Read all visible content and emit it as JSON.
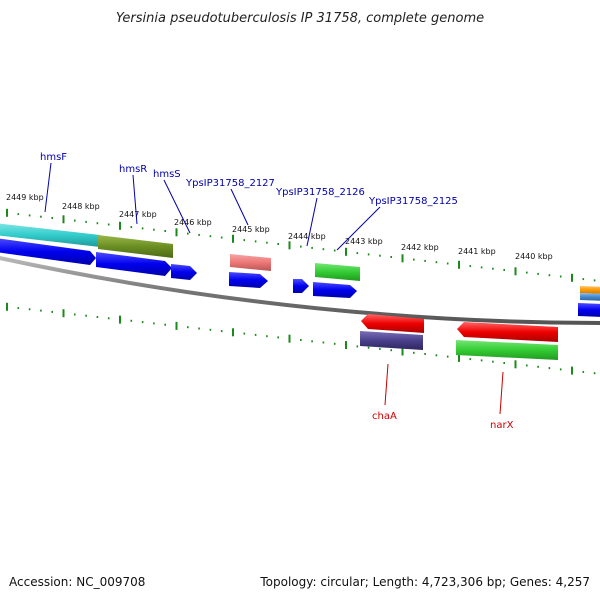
{
  "title": "Yersinia pseudotuberculosis IP 31758, complete genome",
  "footer": {
    "accession": "Accession: NC_009708",
    "topology": "Topology: circular; Length: 4,723,306 bp; Genes: 4,257"
  },
  "scale_labels": [
    "2449 kbp",
    "2448 kbp",
    "2447 kbp",
    "2446 kbp",
    "2445 kbp",
    "2444 kbp",
    "2443 kbp",
    "2442 kbp",
    "2441 kbp",
    "2440 kbp"
  ],
  "gene_labels_top": [
    "hmsF",
    "hmsR",
    "hmsS",
    "YpsIP31758_2127",
    "YpsIP31758_2126",
    "YpsIP31758_2125"
  ],
  "gene_labels_bottom": [
    "chaA",
    "narX"
  ],
  "colors": {
    "backbone": "#888888",
    "tick": "#1a8a1a",
    "label_top": "#0000aa",
    "label_bottom": "#cc0000",
    "cds": "#0000ee",
    "trna": "#ee0000",
    "cyan": "#33cccc",
    "olive": "#6b8e23",
    "salmon": "#ee7777",
    "green": "#33cc33",
    "purple": "#4a3f8a",
    "orange": "#ff9900",
    "steel": "#4488cc"
  }
}
